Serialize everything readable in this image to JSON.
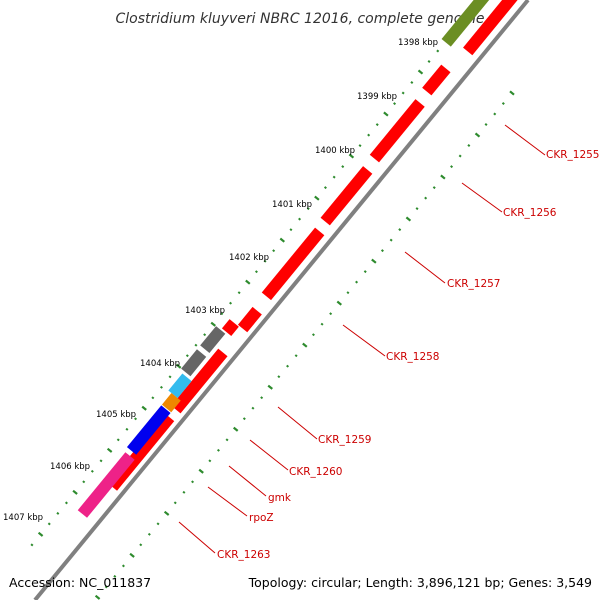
{
  "title": "Clostridium kluyveri NBRC 12016, complete genome",
  "footer": {
    "accession": "Accession: NC_011837",
    "summary": "Topology: circular; Length: 3,896,121 bp; Genes: 3,549"
  },
  "kbp_ticks": [
    "1398 kbp",
    "1399 kbp",
    "1400 kbp",
    "1401 kbp",
    "1402 kbp",
    "1403 kbp",
    "1404 kbp",
    "1405 kbp",
    "1406 kbp",
    "1407 kbp"
  ],
  "gene_labels": [
    "CKR_1255",
    "CKR_1256",
    "CKR_1257",
    "CKR_1258",
    "CKR_1259",
    "CKR_1260",
    "gmk",
    "rpoZ",
    "CKR_1263"
  ],
  "colors": {
    "backbone": "#808080",
    "gene_default": "#ff0000",
    "gene_grey": "#666666",
    "gene_cyan": "#33bbee",
    "gene_orange": "#ee8800",
    "gene_blue": "#0000ee",
    "gene_magenta": "#ee2288",
    "gene_olive": "#6b8e23",
    "ticks": "#2e8b2e",
    "label_line": "#cc0000"
  }
}
